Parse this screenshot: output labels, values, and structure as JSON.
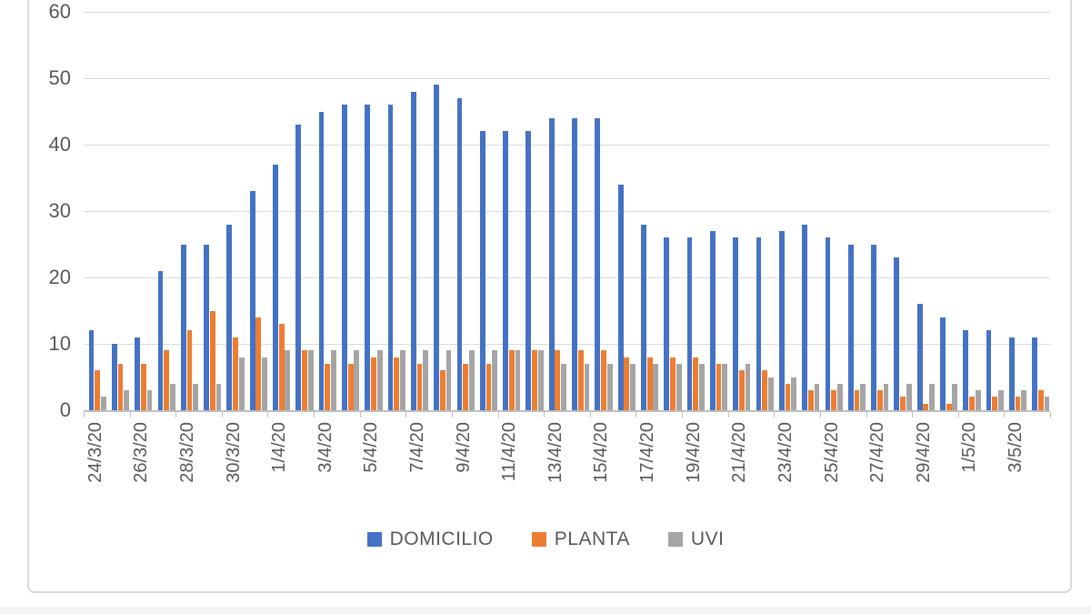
{
  "chart_data": {
    "type": "bar",
    "title": "",
    "xlabel": "",
    "ylabel": "",
    "ylim": [
      0,
      60
    ],
    "y_ticks": [
      0,
      10,
      20,
      30,
      40,
      50,
      60
    ],
    "grid": true,
    "legend_position": "bottom",
    "x_tick_labels_shown": [
      "24/3/20",
      "26/3/20",
      "28/3/20",
      "30/3/20",
      "1/4/20",
      "3/4/20",
      "5/4/20",
      "7/4/20",
      "9/4/20",
      "11/4/20",
      "13/4/20",
      "15/4/20",
      "17/4/20",
      "19/4/20",
      "21/4/20",
      "23/4/20",
      "25/4/20",
      "27/4/20",
      "29/4/20",
      "1/5/20",
      "3/5/20"
    ],
    "categories": [
      "24/3/20",
      "25/3/20",
      "26/3/20",
      "27/3/20",
      "28/3/20",
      "29/3/20",
      "30/3/20",
      "31/3/20",
      "1/4/20",
      "2/4/20",
      "3/4/20",
      "4/4/20",
      "5/4/20",
      "6/4/20",
      "7/4/20",
      "8/4/20",
      "9/4/20",
      "10/4/20",
      "11/4/20",
      "12/4/20",
      "13/4/20",
      "14/4/20",
      "15/4/20",
      "16/4/20",
      "17/4/20",
      "18/4/20",
      "19/4/20",
      "20/4/20",
      "21/4/20",
      "22/4/20",
      "23/4/20",
      "24/4/20",
      "25/4/20",
      "26/4/20",
      "27/4/20",
      "28/4/20",
      "29/4/20",
      "30/4/20",
      "1/5/20",
      "2/5/20",
      "3/5/20",
      "4/5/20"
    ],
    "series": [
      {
        "name": "DOMICILIO",
        "color": "#4472C4",
        "values": [
          12,
          10,
          11,
          21,
          25,
          25,
          28,
          33,
          37,
          43,
          45,
          46,
          46,
          46,
          48,
          49,
          47,
          42,
          42,
          42,
          44,
          44,
          44,
          34,
          28,
          26,
          26,
          27,
          26,
          26,
          27,
          28,
          26,
          25,
          25,
          23,
          16,
          14,
          12,
          12,
          11,
          11
        ]
      },
      {
        "name": "PLANTA",
        "color": "#ED7D31",
        "values": [
          6,
          7,
          7,
          9,
          12,
          15,
          11,
          14,
          13,
          9,
          7,
          7,
          8,
          8,
          7,
          6,
          7,
          7,
          9,
          9,
          9,
          9,
          9,
          8,
          8,
          8,
          8,
          7,
          6,
          6,
          4,
          3,
          3,
          3,
          3,
          2,
          1,
          1,
          2,
          2,
          2,
          3
        ]
      },
      {
        "name": "UVI",
        "color": "#A5A5A5",
        "values": [
          2,
          3,
          3,
          4,
          4,
          4,
          8,
          8,
          9,
          9,
          9,
          9,
          9,
          9,
          9,
          9,
          9,
          9,
          9,
          9,
          7,
          7,
          7,
          7,
          7,
          7,
          7,
          7,
          7,
          5,
          5,
          4,
          4,
          4,
          4,
          4,
          4,
          4,
          3,
          3,
          3,
          2
        ]
      }
    ],
    "colors": {
      "gridline": "#d9d9d9",
      "axis_line": "#bfbfbf",
      "label_text": "#595959",
      "frame_border": "#d9d9d9",
      "background": "#ffffff"
    }
  }
}
